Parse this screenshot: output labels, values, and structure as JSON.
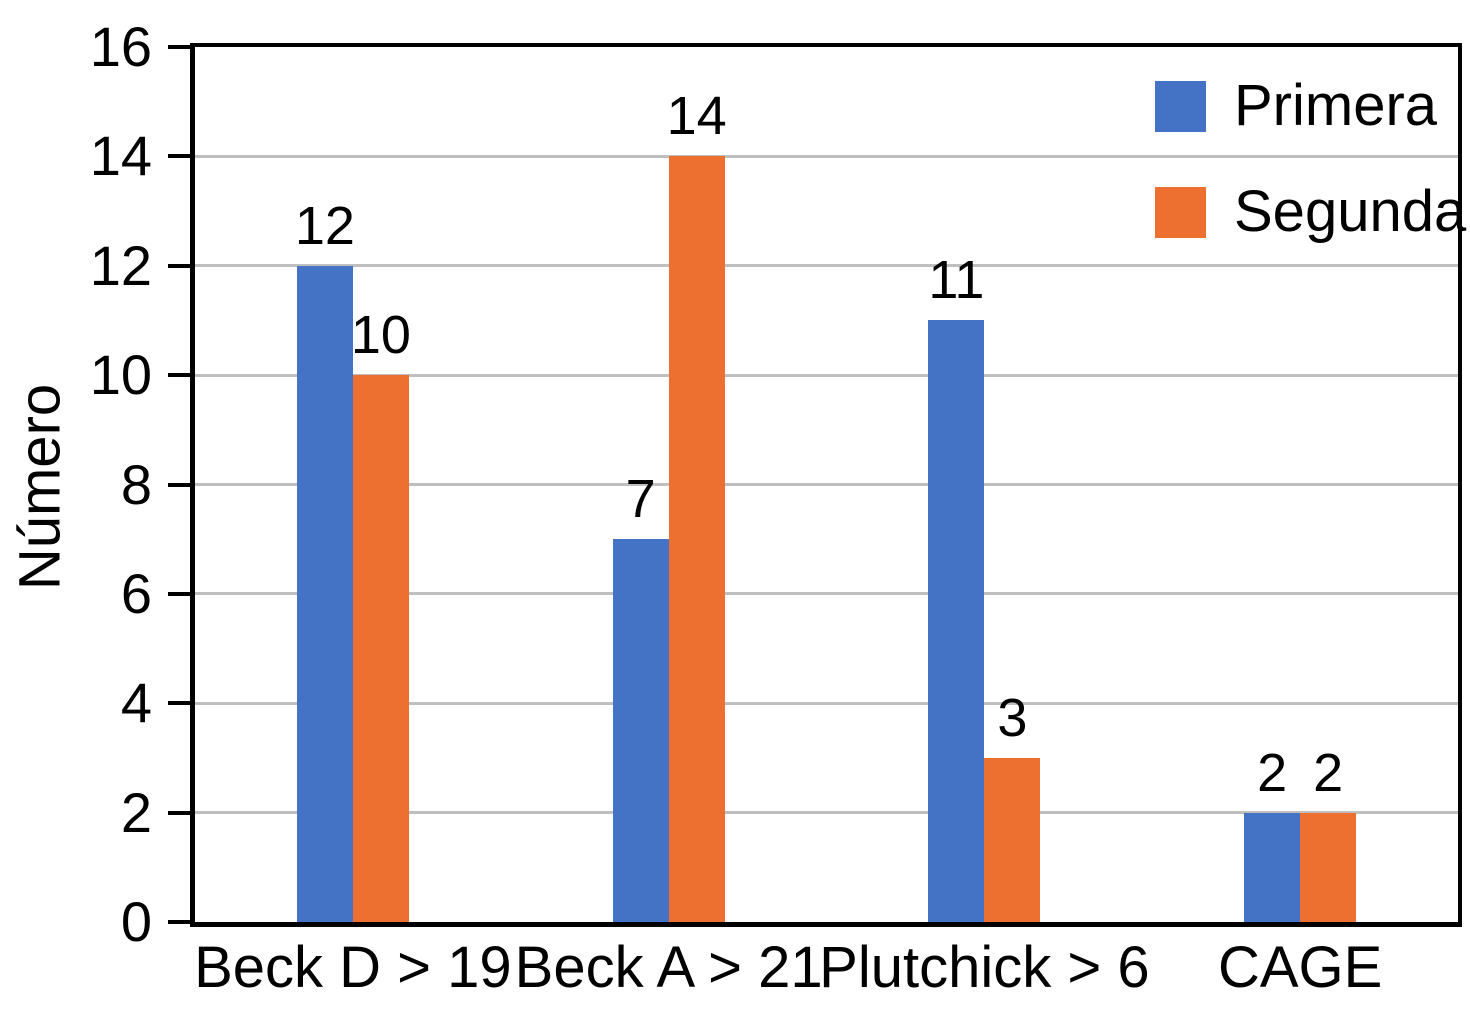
{
  "chart_data": {
    "type": "bar",
    "categories": [
      "Beck D > 19",
      "Beck A > 21",
      "Plutchick > 6",
      "CAGE"
    ],
    "series": [
      {
        "name": "Primera",
        "color": "#4472C4",
        "values": [
          12,
          7,
          11,
          2
        ]
      },
      {
        "name": "Segunda",
        "color": "#ED7031",
        "values": [
          10,
          14,
          3,
          2
        ]
      }
    ],
    "title": "",
    "xlabel": "",
    "ylabel": "Número",
    "ylim": [
      0,
      16
    ],
    "yticks": [
      0,
      2,
      4,
      6,
      8,
      10,
      12,
      14,
      16
    ],
    "grid": true,
    "gridline_color": "#BFBFBF",
    "axis_color": "#000000",
    "text_color": "#000000",
    "legend_position": "top-right",
    "value_labels_shown": true
  }
}
